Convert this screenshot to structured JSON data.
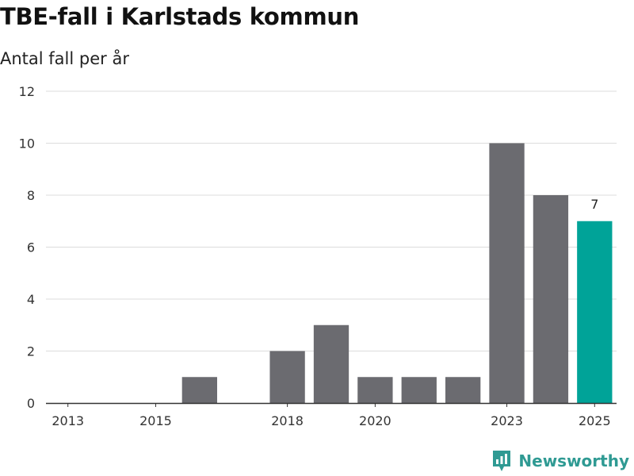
{
  "title": "TBE-fall i Karlstads kommun",
  "subtitle": "Antal fall per år",
  "brand": {
    "name": "Newsworthy",
    "color": "#2f9a93"
  },
  "colors": {
    "bar": "#6b6b70",
    "highlight": "#00a398",
    "grid": "#dcdcdc",
    "axis": "#333333"
  },
  "chart_data": {
    "type": "bar",
    "title": "TBE-fall i Karlstads kommun",
    "subtitle": "Antal fall per år",
    "xlabel": "",
    "ylabel": "",
    "categories": [
      "2013",
      "2014",
      "2015",
      "2016",
      "2017",
      "2018",
      "2019",
      "2020",
      "2021",
      "2022",
      "2023",
      "2024",
      "2025"
    ],
    "x_tick_labels": [
      "2013",
      "2015",
      "2018",
      "2020",
      "2023",
      "2025"
    ],
    "values": [
      0,
      0,
      0,
      1,
      0,
      2,
      3,
      1,
      1,
      1,
      10,
      8,
      7
    ],
    "highlight_category": "2025",
    "data_labels": [
      {
        "category": "2025",
        "text": "7"
      }
    ],
    "ylim": [
      0,
      12
    ],
    "y_ticks": [
      0,
      2,
      4,
      6,
      8,
      10,
      12
    ],
    "grid": true
  }
}
